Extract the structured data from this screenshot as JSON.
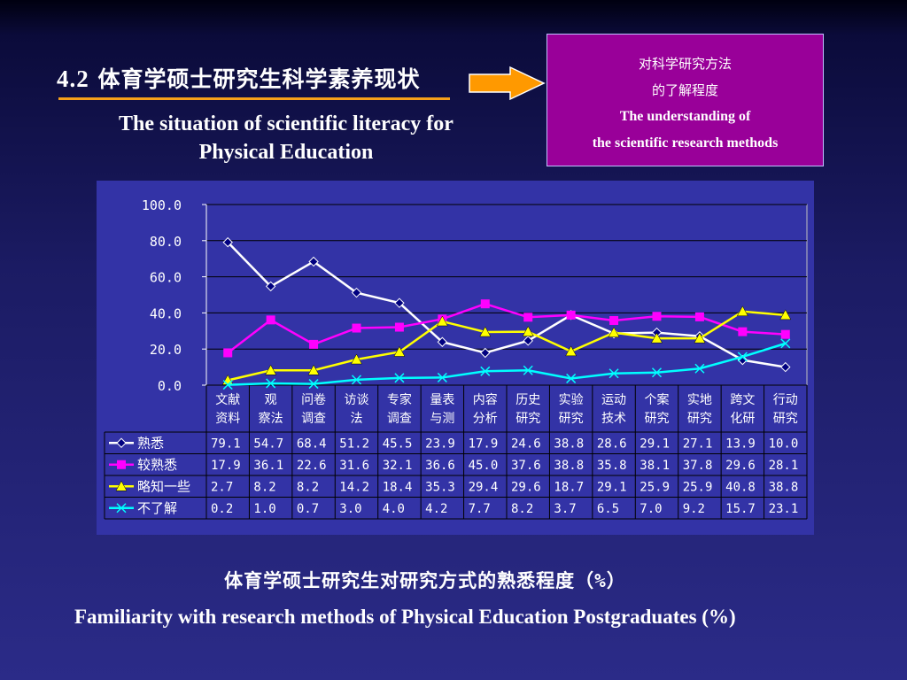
{
  "slide": {
    "title_num": "4.2",
    "title_zh": "体育学硕士研究生科学素养现状",
    "title_en_line1": "The situation of scientific literacy for",
    "title_en_line2": "Physical Education",
    "callout_zh_line1": "对科学研究方法",
    "callout_zh_line2": "的了解程度",
    "callout_en_line1": "The understanding of",
    "callout_en_line2": "the scientific research methods",
    "caption_zh": "体育学硕士研究生对研究方式的熟悉程度（%）",
    "caption_en": "Familiarity with research methods of Physical Education Postgraduates (%)",
    "accent_color": "#f5a01a",
    "callout_color": "#990099"
  },
  "chart_data": {
    "type": "line",
    "title": "",
    "xlabel": "",
    "ylabel": "",
    "ylim": [
      0,
      100
    ],
    "yticks": [
      "100.0",
      "80.0",
      "60.0",
      "40.0",
      "20.0",
      "0.0"
    ],
    "grid": true,
    "legend": "left, in data table",
    "categories": [
      [
        "文献",
        "资料"
      ],
      [
        "观",
        "察法"
      ],
      [
        "问卷",
        "调查"
      ],
      [
        "访谈",
        "法"
      ],
      [
        "专家",
        "调查"
      ],
      [
        "量表",
        "与测"
      ],
      [
        "内容",
        "分析"
      ],
      [
        "历史",
        "研究"
      ],
      [
        "实验",
        "研究"
      ],
      [
        "运动",
        "技术"
      ],
      [
        "个案",
        "研究"
      ],
      [
        "实地",
        "研究"
      ],
      [
        "跨文",
        "化研"
      ],
      [
        "行动",
        "研究"
      ]
    ],
    "series": [
      {
        "name": "熟悉",
        "color": "#ffffff",
        "marker": "diamond",
        "values": [
          79.1,
          54.7,
          68.4,
          51.2,
          45.5,
          23.9,
          17.9,
          24.6,
          38.8,
          28.6,
          29.1,
          27.1,
          13.9,
          10.0
        ],
        "labels": [
          "79.1",
          "54.7",
          "68.4",
          "51.2",
          "45.5",
          "23.9",
          "17.9",
          "24.6",
          "38.8",
          "28.6",
          "29.1",
          "27.1",
          "13.9",
          "10.0"
        ]
      },
      {
        "name": "较熟悉",
        "color": "#ff00ff",
        "marker": "square",
        "values": [
          17.9,
          36.1,
          22.6,
          31.6,
          32.1,
          36.6,
          45.0,
          37.6,
          38.8,
          35.8,
          38.1,
          37.8,
          29.6,
          28.1
        ],
        "labels": [
          "17.9",
          "36.1",
          "22.6",
          "31.6",
          "32.1",
          "36.6",
          "45.0",
          "37.6",
          "38.8",
          "35.8",
          "38.1",
          "37.8",
          "29.6",
          "28.1"
        ]
      },
      {
        "name": "略知一些",
        "color": "#ffff00",
        "marker": "triangle",
        "values": [
          2.7,
          8.2,
          8.2,
          14.2,
          18.4,
          35.3,
          29.4,
          29.6,
          18.7,
          29.1,
          25.9,
          25.9,
          40.8,
          38.8
        ],
        "labels": [
          "2.7",
          "8.2",
          "8.2",
          "14.2",
          "18.4",
          "35.3",
          "29.4",
          "29.6",
          "18.7",
          "29.1",
          "25.9",
          "25.9",
          "40.8",
          "38.8"
        ]
      },
      {
        "name": "不了解",
        "color": "#00ffff",
        "marker": "x",
        "values": [
          0.2,
          1.0,
          0.7,
          3.0,
          4.0,
          4.2,
          7.7,
          8.2,
          3.7,
          6.5,
          7.0,
          9.2,
          15.7,
          23.1
        ],
        "labels": [
          "0.2",
          "1.0",
          "0.7",
          "3.0",
          "4.0",
          "4.2",
          "7.7",
          "8.2",
          "3.7",
          "6.5",
          "7.0",
          "9.2",
          "15.7",
          "23.1"
        ]
      }
    ]
  }
}
